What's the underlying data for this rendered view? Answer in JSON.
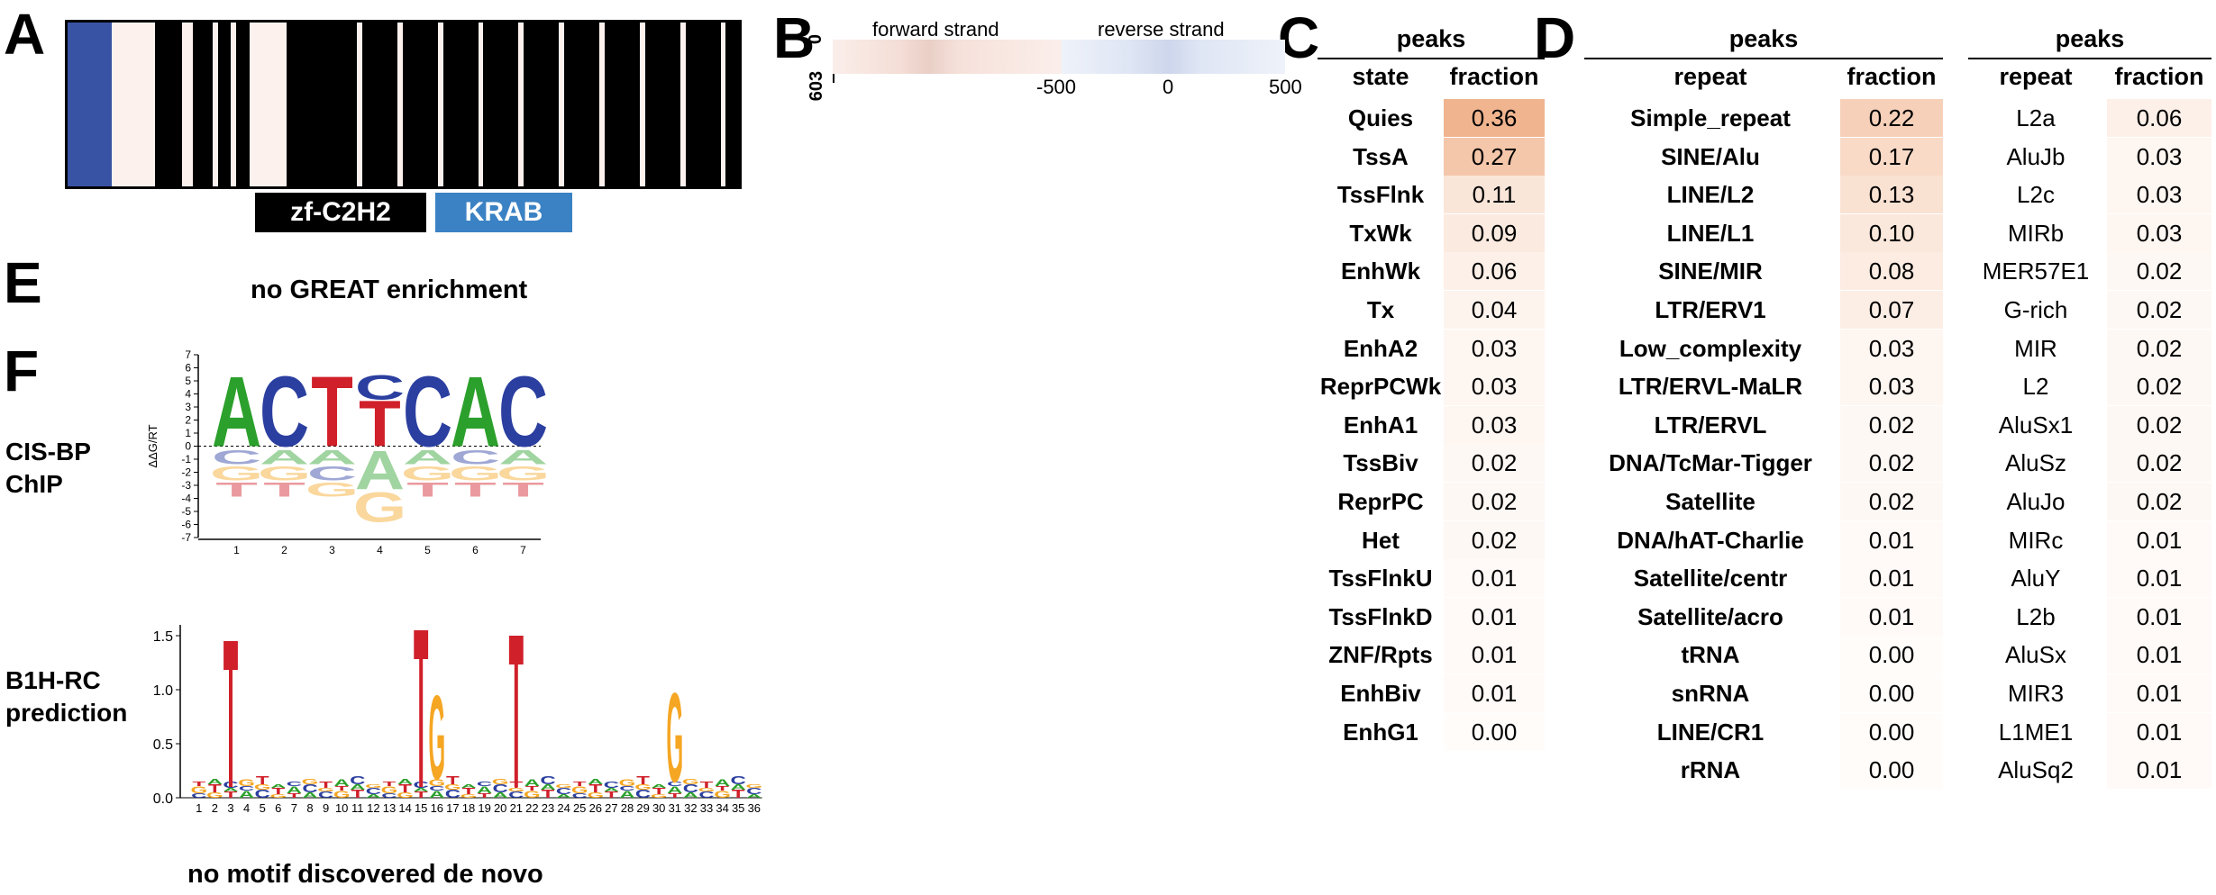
{
  "panels": {
    "A": "A",
    "B": "B",
    "C": "C",
    "D": "D",
    "E": "E",
    "F": "F"
  },
  "panel_a": {
    "segments": [
      {
        "color": "#3953a4",
        "w": 1.0
      },
      {
        "color": "#fdf1ee",
        "w": 1.0
      },
      {
        "color": "#000000",
        "w": 0.6
      },
      {
        "color": "#fdf1ee",
        "w": 0.25
      },
      {
        "color": "#000000",
        "w": 0.45
      },
      {
        "color": "#fdf1ee",
        "w": 0.12
      },
      {
        "color": "#000000",
        "w": 0.3
      },
      {
        "color": "#fdf1ee",
        "w": 0.12
      },
      {
        "color": "#000000",
        "w": 0.3
      },
      {
        "color": "#fdf1ee",
        "w": 0.85
      },
      {
        "color": "#000000",
        "w": 1.6
      },
      {
        "color": "#fdf1ee",
        "w": 0.12
      },
      {
        "color": "#000000",
        "w": 0.8
      },
      {
        "color": "#fdf1ee",
        "w": 0.12
      },
      {
        "color": "#000000",
        "w": 0.8
      },
      {
        "color": "#fdf1ee",
        "w": 0.12
      },
      {
        "color": "#000000",
        "w": 0.8
      },
      {
        "color": "#fdf1ee",
        "w": 0.12
      },
      {
        "color": "#000000",
        "w": 0.8
      },
      {
        "color": "#fdf1ee",
        "w": 0.12
      },
      {
        "color": "#000000",
        "w": 0.8
      },
      {
        "color": "#fdf1ee",
        "w": 0.12
      },
      {
        "color": "#000000",
        "w": 0.8
      },
      {
        "color": "#fdf1ee",
        "w": 0.12
      },
      {
        "color": "#000000",
        "w": 0.8
      },
      {
        "color": "#fdf1ee",
        "w": 0.12
      },
      {
        "color": "#000000",
        "w": 0.8
      },
      {
        "color": "#fdf1ee",
        "w": 0.12
      },
      {
        "color": "#000000",
        "w": 0.8
      },
      {
        "color": "#fdf1ee",
        "w": 0.12
      },
      {
        "color": "#000000",
        "w": 0.3
      }
    ],
    "domains": [
      {
        "label": "zf-C2H2",
        "color": "#000000"
      },
      {
        "label": "KRAB",
        "color": "#3b82c4"
      }
    ]
  },
  "panel_b": {
    "forward_label": "forward strand",
    "reverse_label": "reverse strand",
    "y_top": "0",
    "y_bottom": "603",
    "x_ticks": [
      "-500",
      "0",
      "500"
    ],
    "forward_color": "#f7e3df",
    "reverse_color": "#dfe7f5"
  },
  "panel_c": {
    "group_header": "peaks",
    "col_state": "state",
    "col_fraction": "fraction",
    "rows": [
      {
        "label": "Quies",
        "value": "0.36",
        "v": 0.36
      },
      {
        "label": "TssA",
        "value": "0.27",
        "v": 0.27
      },
      {
        "label": "TssFlnk",
        "value": "0.11",
        "v": 0.11
      },
      {
        "label": "TxWk",
        "value": "0.09",
        "v": 0.09
      },
      {
        "label": "EnhWk",
        "value": "0.06",
        "v": 0.06
      },
      {
        "label": "Tx",
        "value": "0.04",
        "v": 0.04
      },
      {
        "label": "EnhA2",
        "value": "0.03",
        "v": 0.03
      },
      {
        "label": "ReprPCWk",
        "value": "0.03",
        "v": 0.03
      },
      {
        "label": "EnhA1",
        "value": "0.03",
        "v": 0.03
      },
      {
        "label": "TssBiv",
        "value": "0.02",
        "v": 0.02
      },
      {
        "label": "ReprPC",
        "value": "0.02",
        "v": 0.02
      },
      {
        "label": "Het",
        "value": "0.02",
        "v": 0.02
      },
      {
        "label": "TssFlnkU",
        "value": "0.01",
        "v": 0.01
      },
      {
        "label": "TssFlnkD",
        "value": "0.01",
        "v": 0.01
      },
      {
        "label": "ZNF/Rpts",
        "value": "0.01",
        "v": 0.01
      },
      {
        "label": "EnhBiv",
        "value": "0.01",
        "v": 0.01
      },
      {
        "label": "EnhG1",
        "value": "0.00",
        "v": 0.0
      }
    ]
  },
  "panel_d1": {
    "group_header": "peaks",
    "col_repeat": "repeat",
    "col_fraction": "fraction",
    "rows": [
      {
        "label": "Simple_repeat",
        "value": "0.22",
        "v": 0.22
      },
      {
        "label": "SINE/Alu",
        "value": "0.17",
        "v": 0.17
      },
      {
        "label": "LINE/L2",
        "value": "0.13",
        "v": 0.13
      },
      {
        "label": "LINE/L1",
        "value": "0.10",
        "v": 0.1
      },
      {
        "label": "SINE/MIR",
        "value": "0.08",
        "v": 0.08
      },
      {
        "label": "LTR/ERV1",
        "value": "0.07",
        "v": 0.07
      },
      {
        "label": "Low_complexity",
        "value": "0.03",
        "v": 0.03
      },
      {
        "label": "LTR/ERVL-MaLR",
        "value": "0.03",
        "v": 0.03
      },
      {
        "label": "LTR/ERVL",
        "value": "0.02",
        "v": 0.02
      },
      {
        "label": "DNA/TcMar-Tigger",
        "value": "0.02",
        "v": 0.02
      },
      {
        "label": "Satellite",
        "value": "0.02",
        "v": 0.02
      },
      {
        "label": "DNA/hAT-Charlie",
        "value": "0.01",
        "v": 0.01
      },
      {
        "label": "Satellite/centr",
        "value": "0.01",
        "v": 0.01
      },
      {
        "label": "Satellite/acro",
        "value": "0.01",
        "v": 0.01
      },
      {
        "label": "tRNA",
        "value": "0.00",
        "v": 0.0
      },
      {
        "label": "snRNA",
        "value": "0.00",
        "v": 0.0
      },
      {
        "label": "LINE/CR1",
        "value": "0.00",
        "v": 0.0
      },
      {
        "label": "rRNA",
        "value": "0.00",
        "v": 0.0
      }
    ]
  },
  "panel_d2": {
    "group_header": "peaks",
    "col_repeat": "repeat",
    "col_fraction": "fraction",
    "rows": [
      {
        "label": "L2a",
        "value": "0.06",
        "v": 0.06
      },
      {
        "label": "AluJb",
        "value": "0.03",
        "v": 0.03
      },
      {
        "label": "L2c",
        "value": "0.03",
        "v": 0.03
      },
      {
        "label": "MIRb",
        "value": "0.03",
        "v": 0.03
      },
      {
        "label": "MER57E1",
        "value": "0.02",
        "v": 0.02
      },
      {
        "label": "G-rich",
        "value": "0.02",
        "v": 0.02
      },
      {
        "label": "MIR",
        "value": "0.02",
        "v": 0.02
      },
      {
        "label": "L2",
        "value": "0.02",
        "v": 0.02
      },
      {
        "label": "AluSx1",
        "value": "0.02",
        "v": 0.02
      },
      {
        "label": "AluSz",
        "value": "0.02",
        "v": 0.02
      },
      {
        "label": "AluJo",
        "value": "0.02",
        "v": 0.02
      },
      {
        "label": "MIRc",
        "value": "0.01",
        "v": 0.01
      },
      {
        "label": "AluY",
        "value": "0.01",
        "v": 0.01
      },
      {
        "label": "L2b",
        "value": "0.01",
        "v": 0.01
      },
      {
        "label": "AluSx",
        "value": "0.01",
        "v": 0.01
      },
      {
        "label": "MIR3",
        "value": "0.01",
        "v": 0.01
      },
      {
        "label": "L1ME1",
        "value": "0.01",
        "v": 0.01
      },
      {
        "label": "AluSq2",
        "value": "0.01",
        "v": 0.01
      }
    ]
  },
  "panel_e": {
    "text": "no GREAT enrichment"
  },
  "panel_f": {
    "cisbp_label_1": "CIS-BP",
    "cisbp_label_2": "ChIP",
    "b1h_label_1": "B1H-RC",
    "b1h_label_2": "prediction",
    "bottom_text": "no motif discovered de novo",
    "cisbp_logo": {
      "ylabel": "ΔΔG/RT",
      "y_ticks": [
        "7",
        "6",
        "5",
        "4",
        "3",
        "2",
        "1",
        "0",
        "-1",
        "-2",
        "-3",
        "-4",
        "-5",
        "-6",
        "-7"
      ],
      "x_ticks": [
        "1",
        "2",
        "3",
        "4",
        "5",
        "6",
        "7"
      ],
      "top_letters": [
        "A",
        "C",
        "T",
        "T",
        "C",
        "A",
        "C"
      ],
      "second_top": [
        "",
        "",
        "",
        "C",
        "",
        "",
        ""
      ],
      "bottom_rows": [
        [
          "C",
          "A",
          "A",
          "A",
          "A",
          "C",
          "A"
        ],
        [
          "G",
          "G",
          "C",
          "",
          "G",
          "G",
          "G"
        ],
        [
          "T",
          "T",
          "G",
          "G",
          "T",
          "T",
          "T"
        ]
      ]
    },
    "b1h_logo": {
      "y_ticks": [
        "1.5",
        "1.0",
        "0.5",
        "0.0"
      ],
      "x_ticks": [
        "1",
        "2",
        "3",
        "4",
        "5",
        "6",
        "7",
        "8",
        "9",
        "10",
        "11",
        "12",
        "13",
        "14",
        "15",
        "16",
        "17",
        "18",
        "19",
        "20",
        "21",
        "22",
        "23",
        "24",
        "25",
        "26",
        "27",
        "28",
        "29",
        "30",
        "31",
        "32",
        "33",
        "34",
        "35",
        "36"
      ],
      "tall_positions": [
        {
          "pos": 3,
          "letter": "T",
          "h": 1.35
        },
        {
          "pos": 15,
          "letter": "T",
          "h": 1.45
        },
        {
          "pos": 16,
          "letter": "G",
          "h": 0.8
        },
        {
          "pos": 21,
          "letter": "T",
          "h": 1.4
        },
        {
          "pos": 31,
          "letter": "G",
          "h": 0.85
        }
      ]
    }
  },
  "colors": {
    "A": "#2ca02c",
    "C": "#2b3fa0",
    "G": "#f5a623",
    "T": "#d0202a",
    "high": "#f0b48f",
    "mid": "#f9dccb",
    "low": "#fdf3ed"
  }
}
